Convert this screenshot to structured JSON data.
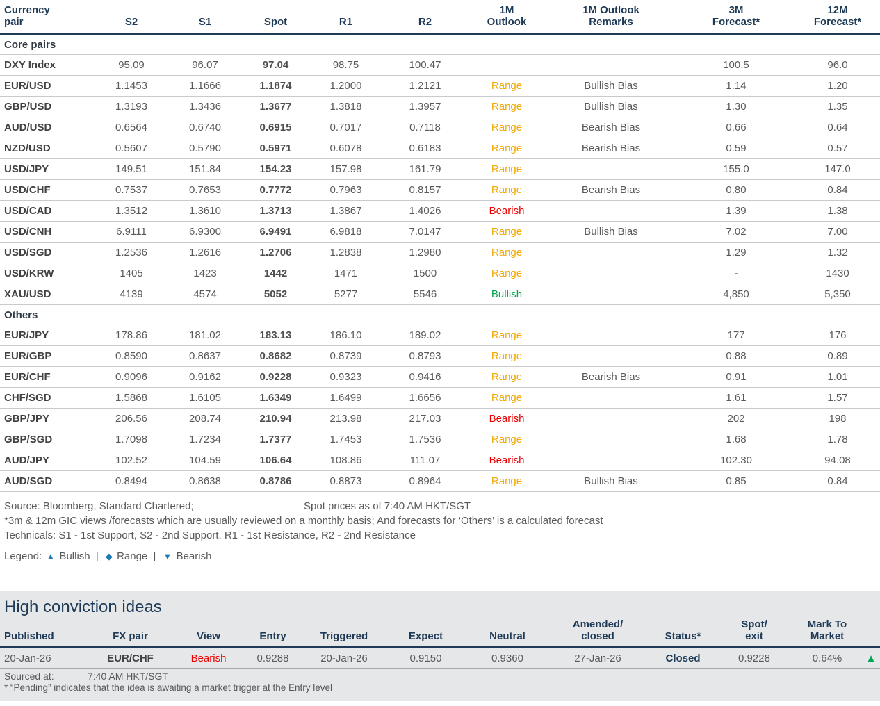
{
  "colors": {
    "range": "#F2A900",
    "bearish": "#EE0000",
    "bullish": "#00A14B",
    "navy": "#1E3A56",
    "legend_blue": "#1C7AB5",
    "mtm_green": "#00A651"
  },
  "fx_table": {
    "headers": [
      "Currency\npair",
      "S2",
      "S1",
      "Spot",
      "R1",
      "R2",
      "1M\nOutlook",
      "1M Outlook\nRemarks",
      "3M\nForecast*",
      "12M\nForecast*"
    ],
    "sections": [
      {
        "title": "Core pairs",
        "rows": [
          {
            "pair": "DXY Index",
            "s2": "95.09",
            "s1": "96.07",
            "spot": "97.04",
            "r1": "98.75",
            "r2": "100.47",
            "outlook": "",
            "remarks": "",
            "f3m": "100.5",
            "f12m": "96.0"
          },
          {
            "pair": "EUR/USD",
            "s2": "1.1453",
            "s1": "1.1666",
            "spot": "1.1874",
            "r1": "1.2000",
            "r2": "1.2121",
            "outlook": "Range",
            "remarks": "Bullish Bias",
            "f3m": "1.14",
            "f12m": "1.20"
          },
          {
            "pair": "GBP/USD",
            "s2": "1.3193",
            "s1": "1.3436",
            "spot": "1.3677",
            "r1": "1.3818",
            "r2": "1.3957",
            "outlook": "Range",
            "remarks": "Bullish Bias",
            "f3m": "1.30",
            "f12m": "1.35"
          },
          {
            "pair": "AUD/USD",
            "s2": "0.6564",
            "s1": "0.6740",
            "spot": "0.6915",
            "r1": "0.7017",
            "r2": "0.7118",
            "outlook": "Range",
            "remarks": "Bearish Bias",
            "f3m": "0.66",
            "f12m": "0.64"
          },
          {
            "pair": "NZD/USD",
            "s2": "0.5607",
            "s1": "0.5790",
            "spot": "0.5971",
            "r1": "0.6078",
            "r2": "0.6183",
            "outlook": "Range",
            "remarks": "Bearish Bias",
            "f3m": "0.59",
            "f12m": "0.57"
          },
          {
            "pair": "USD/JPY",
            "s2": "149.51",
            "s1": "151.84",
            "spot": "154.23",
            "r1": "157.98",
            "r2": "161.79",
            "outlook": "Range",
            "remarks": "",
            "f3m": "155.0",
            "f12m": "147.0"
          },
          {
            "pair": "USD/CHF",
            "s2": "0.7537",
            "s1": "0.7653",
            "spot": "0.7772",
            "r1": "0.7963",
            "r2": "0.8157",
            "outlook": "Range",
            "remarks": "Bearish Bias",
            "f3m": "0.80",
            "f12m": "0.84"
          },
          {
            "pair": "USD/CAD",
            "s2": "1.3512",
            "s1": "1.3610",
            "spot": "1.3713",
            "r1": "1.3867",
            "r2": "1.4026",
            "outlook": "Bearish",
            "remarks": "",
            "f3m": "1.39",
            "f12m": "1.38"
          },
          {
            "pair": "USD/CNH",
            "s2": "6.9111",
            "s1": "6.9300",
            "spot": "6.9491",
            "r1": "6.9818",
            "r2": "7.0147",
            "outlook": "Range",
            "remarks": "Bullish Bias",
            "f3m": "7.02",
            "f12m": "7.00"
          },
          {
            "pair": "USD/SGD",
            "s2": "1.2536",
            "s1": "1.2616",
            "spot": "1.2706",
            "r1": "1.2838",
            "r2": "1.2980",
            "outlook": "Range",
            "remarks": "",
            "f3m": "1.29",
            "f12m": "1.32"
          },
          {
            "pair": "USD/KRW",
            "s2": "1405",
            "s1": "1423",
            "spot": "1442",
            "r1": "1471",
            "r2": "1500",
            "outlook": "Range",
            "remarks": "",
            "f3m": "-",
            "f12m": "1430"
          },
          {
            "pair": "XAU/USD",
            "s2": "4139",
            "s1": "4574",
            "spot": "5052",
            "r1": "5277",
            "r2": "5546",
            "outlook": "Bullish",
            "remarks": "",
            "f3m": "4,850",
            "f12m": "5,350"
          }
        ]
      },
      {
        "title": "Others",
        "rows": [
          {
            "pair": "EUR/JPY",
            "s2": "178.86",
            "s1": "181.02",
            "spot": "183.13",
            "r1": "186.10",
            "r2": "189.02",
            "outlook": "Range",
            "remarks": "",
            "f3m": "177",
            "f12m": "176"
          },
          {
            "pair": "EUR/GBP",
            "s2": "0.8590",
            "s1": "0.8637",
            "spot": "0.8682",
            "r1": "0.8739",
            "r2": "0.8793",
            "outlook": "Range",
            "remarks": "",
            "f3m": "0.88",
            "f12m": "0.89"
          },
          {
            "pair": "EUR/CHF",
            "s2": "0.9096",
            "s1": "0.9162",
            "spot": "0.9228",
            "r1": "0.9323",
            "r2": "0.9416",
            "outlook": "Range",
            "remarks": "Bearish Bias",
            "f3m": "0.91",
            "f12m": "1.01"
          },
          {
            "pair": "CHF/SGD",
            "s2": "1.5868",
            "s1": "1.6105",
            "spot": "1.6349",
            "r1": "1.6499",
            "r2": "1.6656",
            "outlook": "Range",
            "remarks": "",
            "f3m": "1.61",
            "f12m": "1.57"
          },
          {
            "pair": "GBP/JPY",
            "s2": "206.56",
            "s1": "208.74",
            "spot": "210.94",
            "r1": "213.98",
            "r2": "217.03",
            "outlook": "Bearish",
            "remarks": "",
            "f3m": "202",
            "f12m": "198"
          },
          {
            "pair": "GBP/SGD",
            "s2": "1.7098",
            "s1": "1.7234",
            "spot": "1.7377",
            "r1": "1.7453",
            "r2": "1.7536",
            "outlook": "Range",
            "remarks": "",
            "f3m": "1.68",
            "f12m": "1.78"
          },
          {
            "pair": "AUD/JPY",
            "s2": "102.52",
            "s1": "104.59",
            "spot": "106.64",
            "r1": "108.86",
            "r2": "111.07",
            "outlook": "Bearish",
            "remarks": "",
            "f3m": "102.30",
            "f12m": "94.08"
          },
          {
            "pair": "AUD/SGD",
            "s2": "0.8494",
            "s1": "0.8638",
            "spot": "0.8786",
            "r1": "0.8873",
            "r2": "0.8964",
            "outlook": "Range",
            "remarks": "Bullish Bias",
            "f3m": "0.85",
            "f12m": "0.84"
          }
        ]
      }
    ]
  },
  "footnotes": {
    "source": "Source: Bloomberg, Standard Chartered;",
    "spot_asof": "Spot prices as of  7:40 AM HKT/SGT",
    "gic_note": "*3m & 12m GIC views /forecasts which are usually reviewed on a monthly basis; And forecasts for ‘Others’ is a calculated forecast",
    "technicals": "Technicals: S1 - 1st Support, S2 - 2nd Support, R1 - 1st Resistance, R2 - 2nd Resistance"
  },
  "legend": {
    "label": "Legend:",
    "separator": "|",
    "items": [
      {
        "symbol": "▲",
        "label": "Bullish"
      },
      {
        "symbol": "◆",
        "label": "Range"
      },
      {
        "symbol": "▼",
        "label": "Bearish"
      }
    ]
  },
  "high_conviction": {
    "title": "High conviction ideas",
    "headers": [
      "Published",
      "FX pair",
      "View",
      "Entry",
      "Triggered",
      "Expect",
      "Neutral",
      "Amended/\nclosed",
      "Status*",
      "Spot/\nexit",
      "Mark To\nMarket",
      ""
    ],
    "row": {
      "published": "20-Jan-26",
      "fx_pair": "EUR/CHF",
      "view": "Bearish",
      "entry": "0.9288",
      "triggered": "20-Jan-26",
      "expect": "0.9150",
      "neutral": "0.9360",
      "amended_closed": "27-Jan-26",
      "status": "Closed",
      "spot_exit": "0.9228",
      "mark_to_market": "0.64%",
      "mtm_symbol": "▲"
    },
    "sourced_label": "Sourced at:",
    "sourced_value": "7:40 AM HKT/SGT",
    "pending_note": "* “Pending” indicates that the idea is awaiting a market trigger at the Entry level"
  }
}
